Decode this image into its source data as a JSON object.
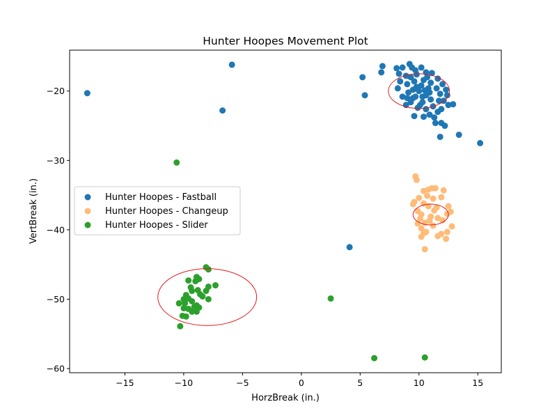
{
  "chart_data": {
    "type": "scatter",
    "title": "Hunter Hoopes Movement Plot",
    "xlabel": "HorzBreak (in.)",
    "ylabel": "VertBreak (in.)",
    "xlim": [
      -19.7,
      17.0
    ],
    "ylim": [
      -60.6,
      -14.1
    ],
    "xticks": [
      -15,
      -10,
      -5,
      0,
      5,
      10,
      15
    ],
    "yticks": [
      -60,
      -50,
      -40,
      -30,
      -20
    ],
    "xtick_labels": [
      "−15",
      "−10",
      "−5",
      "0",
      "5",
      "10",
      "15"
    ],
    "ytick_labels": [
      "−60",
      "−50",
      "−40",
      "−30",
      "−20"
    ],
    "grid": false,
    "legend_placement": "center-left",
    "series": [
      {
        "name": "Hunter Hoopes - Fastball",
        "color": "#1f77b4",
        "points": [
          [
            -18.2,
            -20.3
          ],
          [
            -5.9,
            -16.2
          ],
          [
            -6.7,
            -22.8
          ],
          [
            5.2,
            -18.0
          ],
          [
            5.4,
            -20.6
          ],
          [
            6.9,
            -16.4
          ],
          [
            6.8,
            -17.3
          ],
          [
            8.1,
            -16.7
          ],
          [
            8.3,
            -17.5
          ],
          [
            8.6,
            -16.6
          ],
          [
            8.9,
            -17.8
          ],
          [
            9.2,
            -16.1
          ],
          [
            9.4,
            -16.6
          ],
          [
            9.7,
            -17.0
          ],
          [
            10.2,
            -16.6
          ],
          [
            10.6,
            -17.3
          ],
          [
            11.1,
            -17.4
          ],
          [
            11.6,
            -18.2
          ],
          [
            12.0,
            -19.0
          ],
          [
            12.3,
            -19.8
          ],
          [
            12.4,
            -20.6
          ],
          [
            12.1,
            -21.4
          ],
          [
            12.9,
            -21.9
          ],
          [
            12.5,
            -22.0
          ],
          [
            11.9,
            -22.6
          ],
          [
            11.6,
            -23.0
          ],
          [
            11.3,
            -23.8
          ],
          [
            11.4,
            -24.6
          ],
          [
            11.9,
            -24.6
          ],
          [
            12.2,
            -25.0
          ],
          [
            11.8,
            -26.6
          ],
          [
            13.4,
            -26.3
          ],
          [
            15.2,
            -27.5
          ],
          [
            9.6,
            -23.6
          ],
          [
            10.4,
            -23.7
          ],
          [
            10.9,
            -23.4
          ],
          [
            8.9,
            -22.0
          ],
          [
            8.6,
            -20.8
          ],
          [
            8.2,
            -19.6
          ],
          [
            8.4,
            -18.6
          ],
          [
            9.0,
            -19.0
          ],
          [
            9.3,
            -18.0
          ],
          [
            9.6,
            -18.6
          ],
          [
            9.8,
            -19.4
          ],
          [
            10.0,
            -20.0
          ],
          [
            10.2,
            -19.2
          ],
          [
            10.4,
            -18.4
          ],
          [
            10.6,
            -20.6
          ],
          [
            10.8,
            -19.6
          ],
          [
            11.0,
            -21.2
          ],
          [
            10.3,
            -21.6
          ],
          [
            9.9,
            -22.4
          ],
          [
            9.5,
            -21.0
          ],
          [
            9.1,
            -20.2
          ],
          [
            10.6,
            -22.6
          ],
          [
            11.2,
            -22.2
          ],
          [
            11.7,
            -21.4
          ],
          [
            11.0,
            -18.8
          ],
          [
            9.8,
            -17.6
          ],
          [
            10.1,
            -22.0
          ],
          [
            9.3,
            -21.6
          ],
          [
            10.7,
            -18.0
          ],
          [
            11.5,
            -19.6
          ],
          [
            9.5,
            -19.8
          ],
          [
            10.3,
            -20.8
          ],
          [
            9.0,
            -21.0
          ],
          [
            11.8,
            -20.4
          ],
          [
            10.5,
            -19.9
          ],
          [
            9.7,
            -20.8
          ],
          [
            10.9,
            -20.2
          ]
        ]
      },
      {
        "name": "Hunter Hoopes - Changeup",
        "color": "#ffbb78",
        "points": [
          [
            9.7,
            -32.3
          ],
          [
            9.8,
            -32.8
          ],
          [
            11.1,
            -34.0
          ],
          [
            11.4,
            -34.0
          ],
          [
            10.8,
            -34.2
          ],
          [
            12.1,
            -34.3
          ],
          [
            10.4,
            -34.4
          ],
          [
            10.7,
            -35.1
          ],
          [
            11.9,
            -35.3
          ],
          [
            11.2,
            -35.5
          ],
          [
            10.0,
            -35.4
          ],
          [
            9.6,
            -36.0
          ],
          [
            9.5,
            -36.3
          ],
          [
            10.4,
            -36.2
          ],
          [
            12.5,
            -36.6
          ],
          [
            12.7,
            -37.4
          ],
          [
            12.4,
            -37.7
          ],
          [
            9.9,
            -37.3
          ],
          [
            10.2,
            -37.8
          ],
          [
            11.0,
            -38.1
          ],
          [
            10.1,
            -38.4
          ],
          [
            12.0,
            -38.6
          ],
          [
            9.9,
            -39.1
          ],
          [
            10.5,
            -39.0
          ],
          [
            11.2,
            -39.4
          ],
          [
            10.2,
            -39.8
          ],
          [
            10.6,
            -40.3
          ],
          [
            11.9,
            -40.6
          ],
          [
            12.8,
            -39.5
          ],
          [
            12.4,
            -40.3
          ],
          [
            10.4,
            -40.5
          ],
          [
            10.2,
            -41.0
          ],
          [
            11.6,
            -40.9
          ],
          [
            12.3,
            -41.3
          ],
          [
            10.5,
            -42.8
          ],
          [
            11.5,
            -36.8
          ],
          [
            10.8,
            -36.6
          ],
          [
            11.3,
            -37.2
          ],
          [
            10.9,
            -38.7
          ],
          [
            11.6,
            -38.3
          ]
        ]
      },
      {
        "name": "Hunter Hoopes - Slider",
        "color": "#2ca02c",
        "points": [
          [
            -10.6,
            -30.3
          ],
          [
            -8.1,
            -45.4
          ],
          [
            -7.9,
            -45.7
          ],
          [
            -8.9,
            -46.8
          ],
          [
            -8.7,
            -47.1
          ],
          [
            -9.0,
            -47.4
          ],
          [
            -9.6,
            -47.3
          ],
          [
            -7.3,
            -48.0
          ],
          [
            -7.9,
            -48.2
          ],
          [
            -9.4,
            -48.3
          ],
          [
            -8.8,
            -48.7
          ],
          [
            -9.3,
            -48.8
          ],
          [
            -8.1,
            -48.8
          ],
          [
            -8.6,
            -49.3
          ],
          [
            -9.8,
            -49.4
          ],
          [
            -9.6,
            -49.9
          ],
          [
            -8.4,
            -49.6
          ],
          [
            -10.0,
            -50.0
          ],
          [
            -7.9,
            -50.0
          ],
          [
            -9.3,
            -50.3
          ],
          [
            -10.4,
            -50.6
          ],
          [
            -9.9,
            -50.6
          ],
          [
            -8.9,
            -50.9
          ],
          [
            -9.1,
            -51.1
          ],
          [
            -8.7,
            -51.2
          ],
          [
            -9.6,
            -51.4
          ],
          [
            -9.0,
            -51.5
          ],
          [
            -10.0,
            -51.3
          ],
          [
            -8.9,
            -51.8
          ],
          [
            -9.3,
            -51.8
          ],
          [
            -10.1,
            -52.4
          ],
          [
            -9.8,
            -52.5
          ],
          [
            -10.3,
            -53.9
          ],
          [
            2.5,
            -49.9
          ],
          [
            6.2,
            -58.5
          ],
          [
            10.5,
            -58.4
          ]
        ]
      }
    ],
    "extra_fastball_points": [
      [
        4.1,
        -42.5
      ]
    ],
    "ellipses": [
      {
        "cx": 10.0,
        "cy": -20.0,
        "rx": 2.6,
        "ry": 2.5,
        "color": "#e31a1c"
      },
      {
        "cx": 11.0,
        "cy": -37.8,
        "rx": 1.5,
        "ry": 1.5,
        "color": "#e31a1c"
      },
      {
        "cx": -8.0,
        "cy": -49.7,
        "rx": 4.2,
        "ry": 4.1,
        "color": "#e31a1c"
      }
    ]
  }
}
